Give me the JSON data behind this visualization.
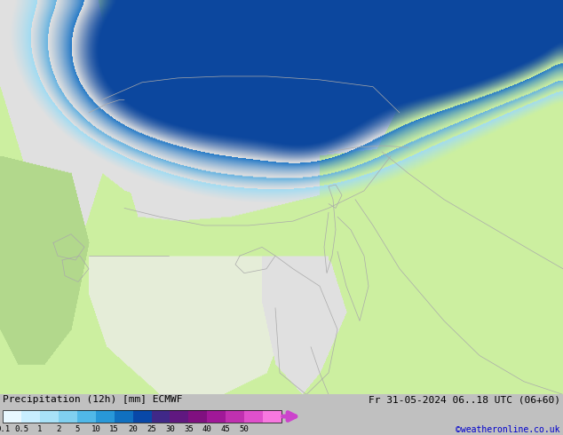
{
  "title_left": "Precipitation (12h) [mm] ECMWF",
  "title_right": "Fr 31-05-2024 06..18 UTC (06+60)",
  "credit": "©weatheronline.co.uk",
  "colorbar_labels": [
    "0.1",
    "0.5",
    "1",
    "2",
    "5",
    "10",
    "15",
    "20",
    "25",
    "30",
    "35",
    "40",
    "45",
    "50"
  ],
  "land_color": "#ccf0a0",
  "sea_color": "#ccf0a0",
  "gray_land_color": "#d8d8d8",
  "border_color": "#aaaaaa",
  "fig_bg": "#ccf0a0",
  "bottom_bg": "#c0c0c0",
  "precip_colors": [
    "#e8f8ff",
    "#c8eeff",
    "#a8e2f8",
    "#80d0f0",
    "#50b8e8",
    "#2898d8",
    "#1070c0",
    "#0848a8",
    "#402888",
    "#601880",
    "#801080",
    "#a01898",
    "#c030b0",
    "#e050cc",
    "#f878e0"
  ],
  "arrow_color": "#cc44cc",
  "title_font_size": 8,
  "label_font_size": 6.5,
  "credit_color": "#0000cc",
  "credit_font_size": 7
}
